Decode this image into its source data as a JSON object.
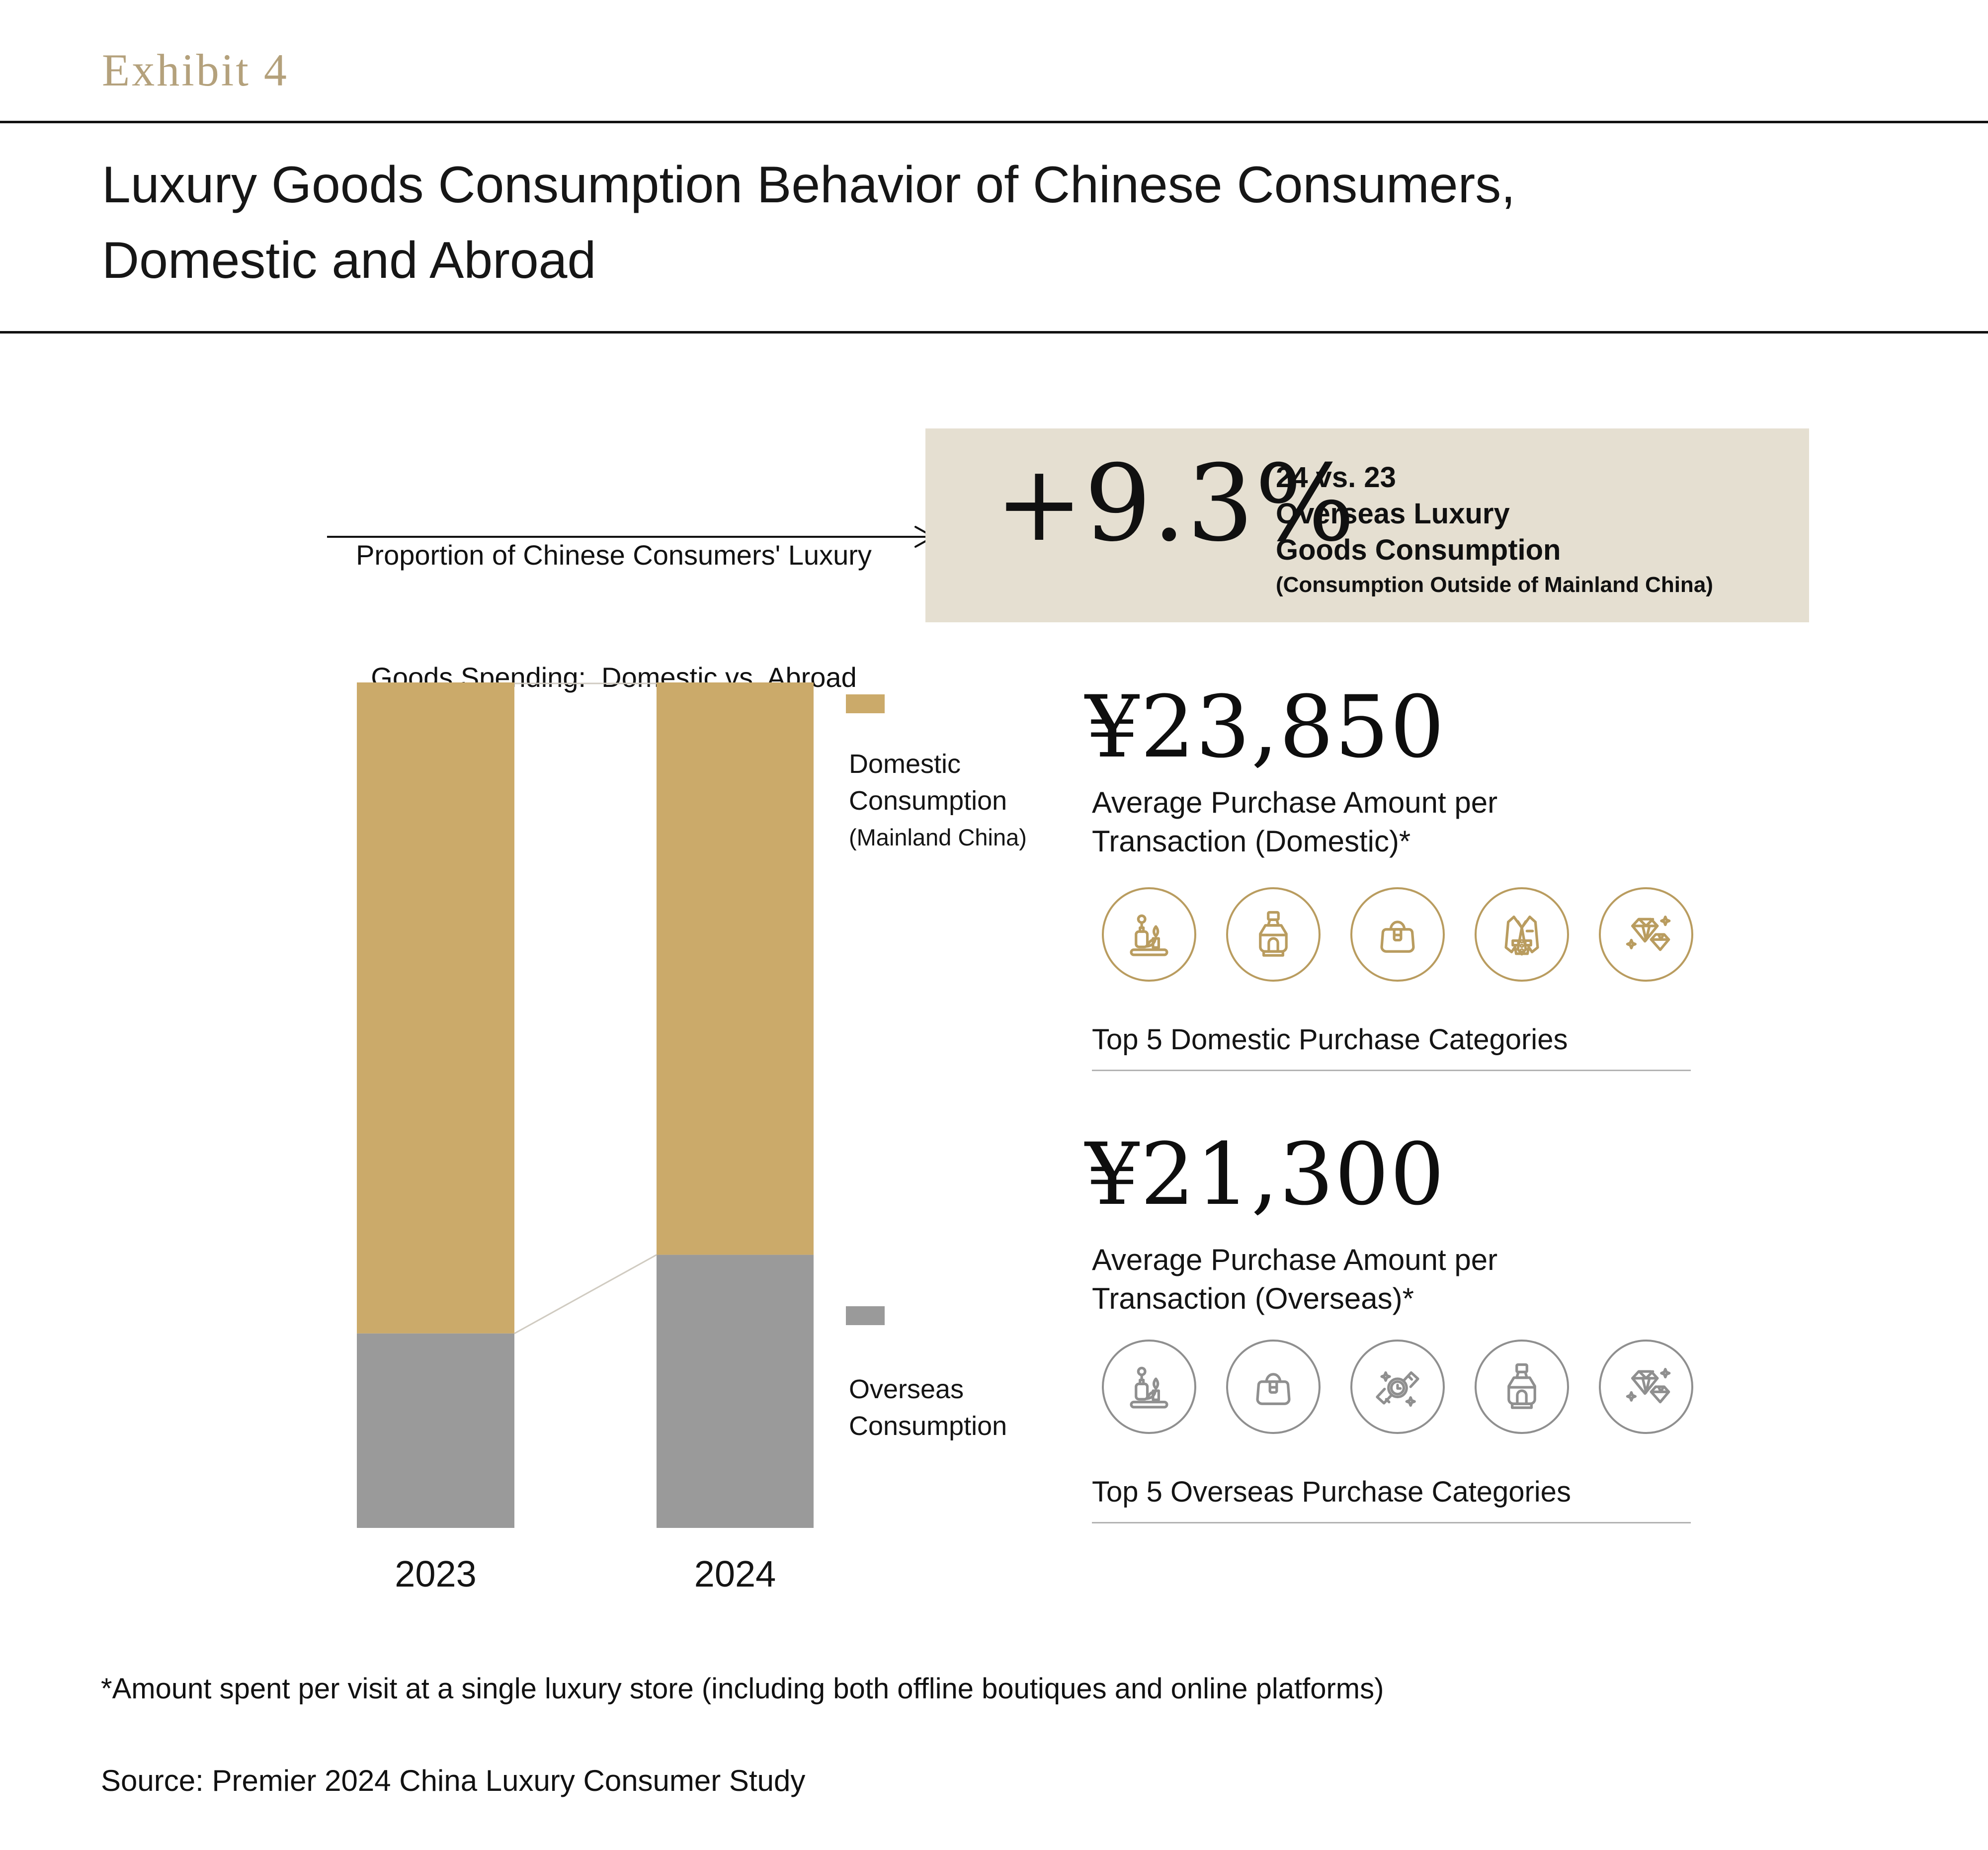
{
  "header": {
    "exhibit_label": "Exhibit 4",
    "title_line1": "Luxury Goods Consumption Behavior of Chinese Consumers,",
    "title_line2": "Domestic and Abroad"
  },
  "annotation": {
    "line1": "Proportion of Chinese Consumers' Luxury",
    "line2": "Goods Spending:  Domestic vs. Abroad"
  },
  "highlight_box": {
    "value": "+9.3%",
    "heading": "24 vs. 23",
    "line2": "Overseas Luxury",
    "line3": "Goods Consumption",
    "subnote": "(Consumption Outside of Mainland China)"
  },
  "chart_data": {
    "type": "bar",
    "stacked": true,
    "categories": [
      "2023",
      "2024"
    ],
    "series": [
      {
        "name": "Domestic Consumption (Mainland China)",
        "values": [
          77.0,
          67.7
        ],
        "color": "#cbaa6a"
      },
      {
        "name": "Overseas Consumption",
        "values": [
          23.0,
          32.3
        ],
        "color": "#9a9a9a"
      }
    ],
    "unit": "percent share of total luxury spending",
    "ylim": [
      0,
      100
    ],
    "grid": false,
    "legend_position": "right",
    "annotation": "+9.3% overseas share growth, 2024 vs. 2023"
  },
  "legend": {
    "domestic": {
      "line1": "Domestic",
      "line2": "Consumption",
      "line3": "(Mainland China)"
    },
    "overseas": {
      "line1": "Overseas",
      "line2": "Consumption"
    }
  },
  "domestic_panel": {
    "amount": "¥23,850",
    "caption_line1": "Average Purchase Amount per",
    "caption_line2": "Transaction (Domestic)*",
    "categories_label": "Top 5 Domestic Purchase Categories",
    "icons": [
      "cosmetics",
      "perfume",
      "handbag",
      "apparel",
      "jewelry"
    ]
  },
  "overseas_panel": {
    "amount": "¥21,300",
    "caption_line1": "Average Purchase Amount per",
    "caption_line2": "Transaction (Overseas)*",
    "categories_label": "Top 5 Overseas Purchase Categories",
    "icons": [
      "cosmetics",
      "handbag",
      "watch",
      "perfume",
      "jewelry"
    ]
  },
  "footnote": {
    "text": "*Amount spent per visit at a single luxury store (including both offline boutiques and online platforms)"
  },
  "source": {
    "text": "Source: Premier 2024 China Luxury Consumer Study"
  },
  "colors": {
    "gold": "#cbaa6a",
    "gray": "#9a9a9a",
    "beige": "#e5dfd1",
    "accent_serif": "#b4a17c",
    "rule": "#111111",
    "underline": "#b3b3b3",
    "connector": "#d0cbc1",
    "icon_gold": "#b99c5f",
    "icon_gray": "#8f8f8f",
    "text": "#1b1b1b"
  }
}
